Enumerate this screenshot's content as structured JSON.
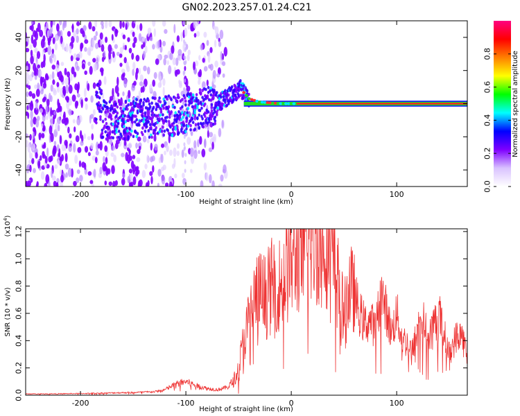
{
  "title": "GN02.2023.257.01.24.C21",
  "chart_data": [
    {
      "type": "heatmap",
      "xlabel": "Height of straight line (km)",
      "ylabel": "Frequency (Hz)",
      "xlim": [
        -252,
        167
      ],
      "ylim": [
        -50,
        50
      ],
      "xticks": [
        -200,
        -100,
        0,
        100
      ],
      "yticks": [
        -40,
        -20,
        0,
        20,
        40
      ],
      "colorbar": {
        "label": "Normalized spectral amplitude",
        "range": [
          0,
          1
        ],
        "ticks": [
          "0.0",
          "0.2",
          "0.4",
          "0.6",
          "0.8"
        ],
        "tick_values": [
          0,
          0.2,
          0.4,
          0.6,
          0.8
        ],
        "colors": [
          "#ffffff",
          "#d9c2ff",
          "#7f00ff",
          "#0000ff",
          "#00ffff",
          "#00ff00",
          "#ffff00",
          "#ff8000",
          "#ff0000",
          "#ff0080"
        ]
      },
      "ridge": [
        {
          "x": -180,
          "y": -10
        },
        {
          "x": -140,
          "y": -9
        },
        {
          "x": -110,
          "y": -7
        },
        {
          "x": -90,
          "y": -4
        },
        {
          "x": -70,
          "y": 0
        },
        {
          "x": -55,
          "y": 6
        },
        {
          "x": -48,
          "y": 9
        },
        {
          "x": -40,
          "y": 3
        },
        {
          "x": -30,
          "y": 1
        },
        {
          "x": -10,
          "y": 0
        },
        {
          "x": 10,
          "y": 0
        },
        {
          "x": 167,
          "y": 0
        }
      ]
    },
    {
      "type": "line",
      "xlabel": "Height of straight line (km)",
      "ylabel": "SNR (10 * v/v)",
      "multiplier": "(x10",
      "multiplier_exp": "4",
      "multiplier_close": ")",
      "xlim": [
        -252,
        167
      ],
      "ylim": [
        0,
        1.22
      ],
      "xticks": [
        -200,
        -100,
        0,
        100
      ],
      "yticks": [
        0,
        0.2,
        0.4,
        0.6,
        0.8,
        1.0,
        1.2
      ],
      "ytick_labels": [
        "0.0",
        "0.2",
        "0.4",
        "0.6",
        "0.8",
        "1.0",
        "1.2"
      ],
      "color": "#ee3333",
      "series": [
        {
          "x": [
            -252,
            -230,
            -200,
            -180,
            -150,
            -130,
            -120,
            -110,
            -100,
            -90,
            -80,
            -70,
            -60,
            -55,
            -50,
            -45,
            -40,
            -35,
            -30,
            -25,
            -20,
            -15,
            -10,
            -5,
            0,
            5,
            10,
            15,
            20,
            25,
            30,
            35,
            40,
            45,
            50,
            55,
            60,
            65,
            70,
            75,
            80,
            85,
            90,
            95,
            100,
            105,
            110,
            115,
            120,
            125,
            130,
            135,
            140,
            145,
            150,
            155,
            160,
            165,
            167
          ],
          "y": [
            0.01,
            0.01,
            0.012,
            0.015,
            0.02,
            0.025,
            0.04,
            0.08,
            0.1,
            0.07,
            0.05,
            0.04,
            0.06,
            0.1,
            0.2,
            0.4,
            0.55,
            0.7,
            0.75,
            0.72,
            0.78,
            0.85,
            0.8,
            0.9,
            0.98,
            1.03,
            1.05,
            1.08,
            1.12,
            1.16,
            1.18,
            1.12,
            0.95,
            0.8,
            0.55,
            0.8,
            0.72,
            0.6,
            0.52,
            0.55,
            0.48,
            0.75,
            0.62,
            0.45,
            0.6,
            0.42,
            0.38,
            0.32,
            0.5,
            0.55,
            0.42,
            0.52,
            0.6,
            0.45,
            0.3,
            0.4,
            0.48,
            0.35,
            0.25
          ]
        }
      ]
    }
  ]
}
